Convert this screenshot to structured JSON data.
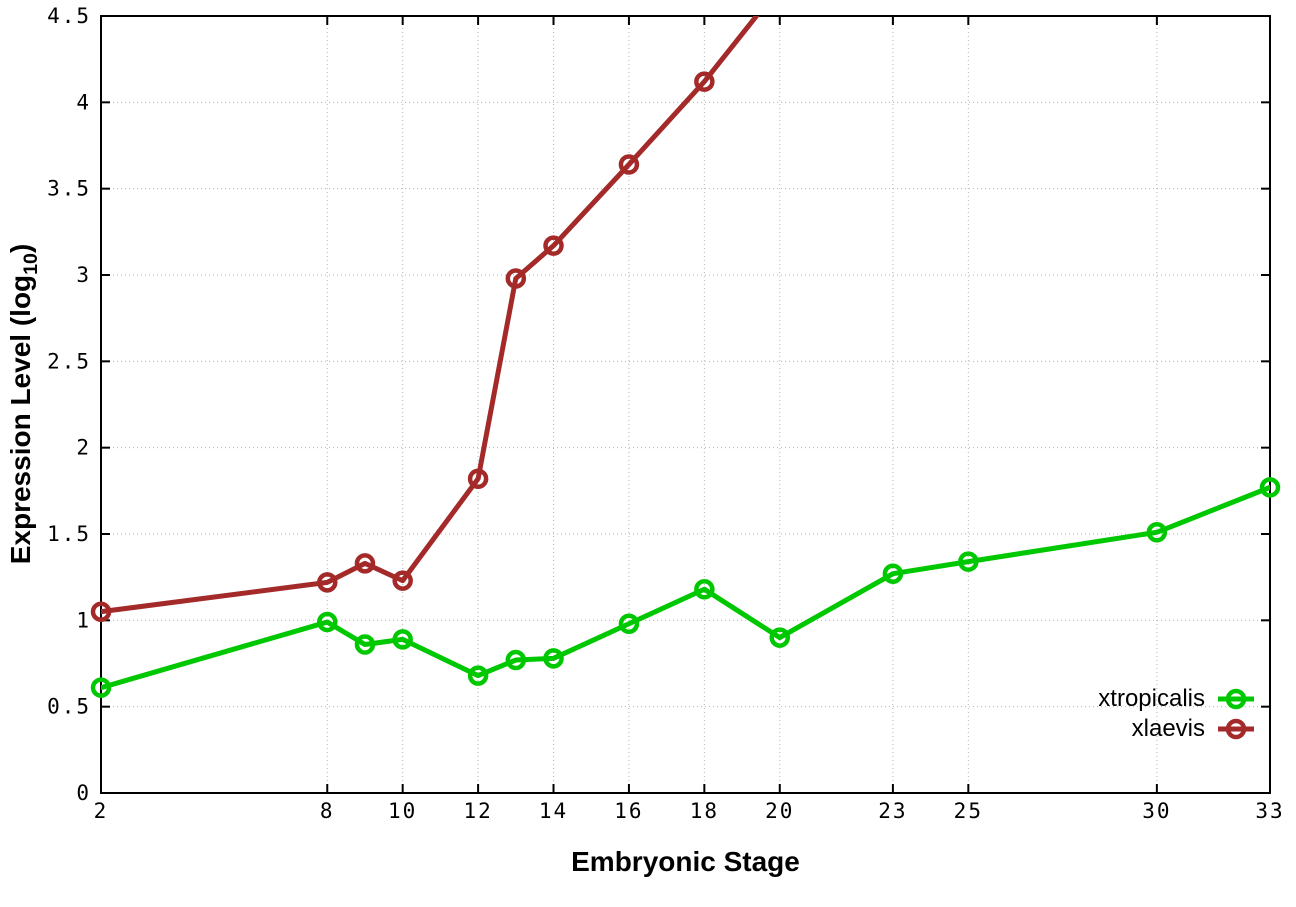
{
  "figure": {
    "background_color": "#ffffff",
    "border_color": "#000000",
    "gridline_color": "#b4b4b4"
  },
  "chart_data": {
    "type": "line",
    "title": "",
    "xlabel": "Embryonic Stage",
    "ylabel": {
      "text": "Expression Level (log10)",
      "prefix": "Expression Level (log",
      "sub": "10",
      "suffix": ")"
    },
    "xlim": [
      2,
      33
    ],
    "ylim": [
      0,
      4.5
    ],
    "x_ticks": [
      2,
      8,
      10,
      12,
      14,
      16,
      18,
      20,
      23,
      25,
      30,
      33
    ],
    "y_ticks": [
      0,
      0.5,
      1,
      1.5,
      2,
      2.5,
      3,
      3.5,
      4,
      4.5
    ],
    "grid": true,
    "grid_style": "dotted",
    "legend_position": "bottom-right",
    "series": [
      {
        "name": "xtropicalis",
        "color": "#00c800",
        "marker": "open-circle",
        "points": [
          [
            2,
            0.61
          ],
          [
            8,
            0.99
          ],
          [
            9,
            0.86
          ],
          [
            10,
            0.89
          ],
          [
            12,
            0.68
          ],
          [
            13,
            0.77
          ],
          [
            14,
            0.78
          ],
          [
            16,
            0.98
          ],
          [
            18,
            1.18
          ],
          [
            20,
            0.9
          ],
          [
            23,
            1.27
          ],
          [
            25,
            1.34
          ],
          [
            30,
            1.51
          ],
          [
            33,
            1.77
          ]
        ]
      },
      {
        "name": "xlaevis",
        "color": "#a42a2a",
        "marker": "open-circle",
        "points": [
          [
            2,
            1.05
          ],
          [
            8,
            1.22
          ],
          [
            9,
            1.33
          ],
          [
            10,
            1.23
          ],
          [
            12,
            1.82
          ],
          [
            13,
            2.98
          ],
          [
            14,
            3.17
          ],
          [
            16,
            3.64
          ],
          [
            18,
            4.12
          ],
          [
            20,
            4.67
          ]
        ],
        "note": "line rises above the 4.5 axis maximum after stage 18; stage-20 value estimated from slope of clipped segment"
      }
    ]
  }
}
